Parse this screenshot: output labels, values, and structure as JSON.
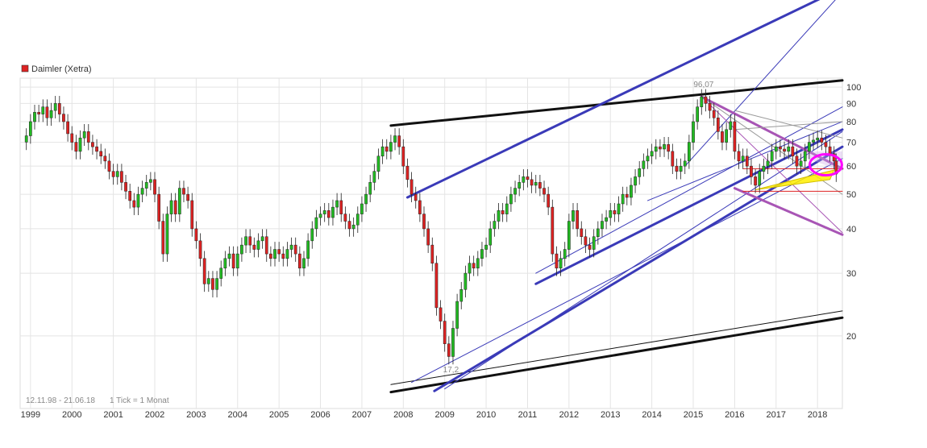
{
  "chart_data": {
    "type": "candlestick",
    "title": "Daimler (Xetra)",
    "date_range": "12.11.98 - 21.06.18",
    "tick_info": "1 Tick = 1 Monat",
    "y_scale": "log",
    "ylim": [
      12.5,
      106
    ],
    "y_ticks": [
      20,
      30,
      40,
      50,
      60,
      70,
      80,
      90,
      100
    ],
    "x_ticks": [
      "1999",
      "2000",
      "2001",
      "2002",
      "2003",
      "2004",
      "2005",
      "2006",
      "2007",
      "2008",
      "2009",
      "2010",
      "2011",
      "2012",
      "2013",
      "2014",
      "2015",
      "2016",
      "2017",
      "2018"
    ],
    "annotations": [
      {
        "text": "96,07",
        "date": 2015.25,
        "value": 96.07
      },
      {
        "text": "17,2",
        "date": 2009.15,
        "value": 17.2
      }
    ],
    "colors": {
      "up": "#22bb22",
      "down": "#dd2222",
      "grid": "#e4e4e4",
      "trend_thick": "#111111",
      "channel": "#3a3ab8",
      "fan": "#a855b5",
      "highlight": "#ff00ff",
      "zone": "#ffee00"
    },
    "closes": [
      [
        1998.9,
        73
      ],
      [
        1999.0,
        80
      ],
      [
        1999.1,
        85
      ],
      [
        1999.2,
        84
      ],
      [
        1999.3,
        88
      ],
      [
        1999.4,
        82
      ],
      [
        1999.5,
        86
      ],
      [
        1999.6,
        90
      ],
      [
        1999.7,
        84
      ],
      [
        1999.8,
        80
      ],
      [
        1999.9,
        74
      ],
      [
        2000.0,
        70
      ],
      [
        2000.1,
        66
      ],
      [
        2000.2,
        72
      ],
      [
        2000.3,
        75
      ],
      [
        2000.4,
        70
      ],
      [
        2000.5,
        68
      ],
      [
        2000.6,
        66
      ],
      [
        2000.7,
        64
      ],
      [
        2000.8,
        62
      ],
      [
        2000.9,
        58
      ],
      [
        2001.0,
        56
      ],
      [
        2001.1,
        58
      ],
      [
        2001.2,
        54
      ],
      [
        2001.3,
        51
      ],
      [
        2001.4,
        48
      ],
      [
        2001.5,
        46
      ],
      [
        2001.6,
        50
      ],
      [
        2001.7,
        52
      ],
      [
        2001.8,
        54
      ],
      [
        2001.9,
        55
      ],
      [
        2002.0,
        50
      ],
      [
        2002.1,
        42
      ],
      [
        2002.2,
        34
      ],
      [
        2002.3,
        44
      ],
      [
        2002.4,
        48
      ],
      [
        2002.5,
        44
      ],
      [
        2002.6,
        52
      ],
      [
        2002.7,
        50
      ],
      [
        2002.8,
        48
      ],
      [
        2002.9,
        40
      ],
      [
        2003.0,
        37
      ],
      [
        2003.1,
        33
      ],
      [
        2003.2,
        28
      ],
      [
        2003.3,
        29
      ],
      [
        2003.4,
        27
      ],
      [
        2003.5,
        29
      ],
      [
        2003.6,
        31
      ],
      [
        2003.7,
        33
      ],
      [
        2003.8,
        34
      ],
      [
        2003.9,
        31
      ],
      [
        2004.0,
        34
      ],
      [
        2004.1,
        36
      ],
      [
        2004.2,
        38
      ],
      [
        2004.3,
        36
      ],
      [
        2004.4,
        35
      ],
      [
        2004.5,
        37
      ],
      [
        2004.6,
        38
      ],
      [
        2004.7,
        34
      ],
      [
        2004.8,
        33
      ],
      [
        2004.9,
        35
      ],
      [
        2005.0,
        34
      ],
      [
        2005.1,
        33
      ],
      [
        2005.2,
        35
      ],
      [
        2005.3,
        36
      ],
      [
        2005.4,
        34
      ],
      [
        2005.5,
        31
      ],
      [
        2005.6,
        33
      ],
      [
        2005.7,
        37
      ],
      [
        2005.8,
        40
      ],
      [
        2005.9,
        43
      ],
      [
        2006.0,
        44
      ],
      [
        2006.1,
        45
      ],
      [
        2006.2,
        43
      ],
      [
        2006.3,
        46
      ],
      [
        2006.4,
        48
      ],
      [
        2006.5,
        44
      ],
      [
        2006.6,
        42
      ],
      [
        2006.7,
        40
      ],
      [
        2006.8,
        41
      ],
      [
        2006.9,
        44
      ],
      [
        2007.0,
        47
      ],
      [
        2007.1,
        50
      ],
      [
        2007.2,
        54
      ],
      [
        2007.3,
        58
      ],
      [
        2007.4,
        64
      ],
      [
        2007.5,
        68
      ],
      [
        2007.6,
        66
      ],
      [
        2007.7,
        70
      ],
      [
        2007.8,
        73
      ],
      [
        2007.9,
        68
      ],
      [
        2008.0,
        60
      ],
      [
        2008.1,
        55
      ],
      [
        2008.2,
        50
      ],
      [
        2008.3,
        48
      ],
      [
        2008.4,
        44
      ],
      [
        2008.5,
        40
      ],
      [
        2008.6,
        36
      ],
      [
        2008.7,
        32
      ],
      [
        2008.8,
        24
      ],
      [
        2008.9,
        22
      ],
      [
        2009.0,
        19
      ],
      [
        2009.1,
        17.5
      ],
      [
        2009.2,
        21
      ],
      [
        2009.3,
        25
      ],
      [
        2009.4,
        27
      ],
      [
        2009.5,
        30
      ],
      [
        2009.6,
        32
      ],
      [
        2009.7,
        31
      ],
      [
        2009.8,
        33
      ],
      [
        2009.9,
        35
      ],
      [
        2010.0,
        36
      ],
      [
        2010.1,
        40
      ],
      [
        2010.2,
        42
      ],
      [
        2010.3,
        45
      ],
      [
        2010.4,
        44
      ],
      [
        2010.5,
        47
      ],
      [
        2010.6,
        50
      ],
      [
        2010.7,
        52
      ],
      [
        2010.8,
        54
      ],
      [
        2010.9,
        56
      ],
      [
        2011.0,
        55
      ],
      [
        2011.1,
        53
      ],
      [
        2011.2,
        54
      ],
      [
        2011.3,
        52
      ],
      [
        2011.4,
        50
      ],
      [
        2011.5,
        46
      ],
      [
        2011.6,
        34
      ],
      [
        2011.7,
        31
      ],
      [
        2011.8,
        33
      ],
      [
        2011.9,
        35
      ],
      [
        2012.0,
        42
      ],
      [
        2012.1,
        45
      ],
      [
        2012.2,
        40
      ],
      [
        2012.3,
        38
      ],
      [
        2012.4,
        36
      ],
      [
        2012.5,
        35
      ],
      [
        2012.6,
        38
      ],
      [
        2012.7,
        40
      ],
      [
        2012.8,
        42
      ],
      [
        2012.9,
        43
      ],
      [
        2013.0,
        45
      ],
      [
        2013.1,
        44
      ],
      [
        2013.2,
        47
      ],
      [
        2013.3,
        50
      ],
      [
        2013.4,
        49
      ],
      [
        2013.5,
        53
      ],
      [
        2013.6,
        56
      ],
      [
        2013.7,
        59
      ],
      [
        2013.8,
        62
      ],
      [
        2013.9,
        64
      ],
      [
        2014.0,
        66
      ],
      [
        2014.1,
        68
      ],
      [
        2014.2,
        67
      ],
      [
        2014.3,
        69
      ],
      [
        2014.4,
        66
      ],
      [
        2014.5,
        60
      ],
      [
        2014.6,
        58
      ],
      [
        2014.7,
        60
      ],
      [
        2014.8,
        62
      ],
      [
        2014.9,
        70
      ],
      [
        2015.0,
        80
      ],
      [
        2015.1,
        88
      ],
      [
        2015.2,
        94
      ],
      [
        2015.3,
        90
      ],
      [
        2015.4,
        86
      ],
      [
        2015.5,
        82
      ],
      [
        2015.6,
        75
      ],
      [
        2015.7,
        70
      ],
      [
        2015.8,
        76
      ],
      [
        2015.9,
        80
      ],
      [
        2016.0,
        66
      ],
      [
        2016.1,
        62
      ],
      [
        2016.2,
        64
      ],
      [
        2016.3,
        60
      ],
      [
        2016.4,
        56
      ],
      [
        2016.5,
        53
      ],
      [
        2016.6,
        58
      ],
      [
        2016.7,
        60
      ],
      [
        2016.8,
        62
      ],
      [
        2016.9,
        66
      ],
      [
        2017.0,
        68
      ],
      [
        2017.1,
        67
      ],
      [
        2017.2,
        66
      ],
      [
        2017.3,
        68
      ],
      [
        2017.4,
        64
      ],
      [
        2017.5,
        60
      ],
      [
        2017.6,
        62
      ],
      [
        2017.7,
        66
      ],
      [
        2017.8,
        70
      ],
      [
        2017.9,
        71
      ],
      [
        2018.0,
        72
      ],
      [
        2018.1,
        70
      ],
      [
        2018.2,
        68
      ],
      [
        2018.3,
        65
      ],
      [
        2018.4,
        62
      ],
      [
        2018.45,
        57
      ]
    ]
  }
}
